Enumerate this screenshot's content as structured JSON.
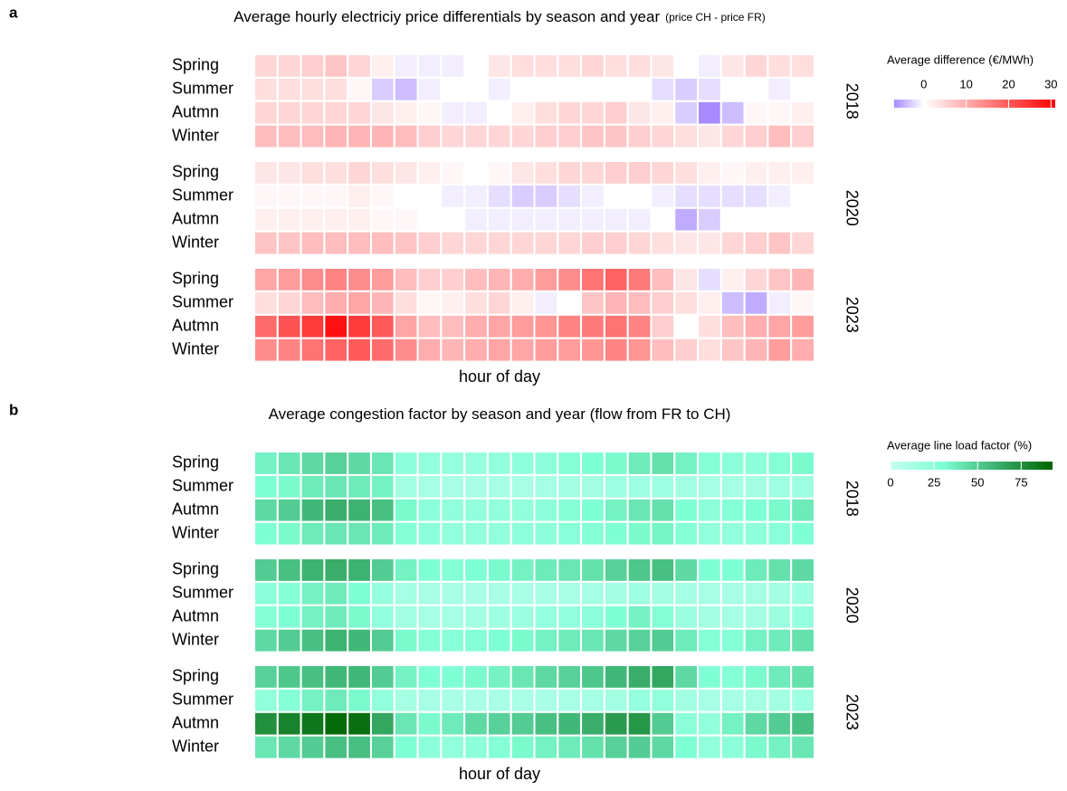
{
  "chart_data": [
    {
      "type": "heatmap",
      "panel": "a",
      "title": "Average hourly electriciy price differentials by season and year",
      "subtitle": "(price CH - price FR)",
      "x_label": "hour of day",
      "legend_title": "Average difference (€/MWh)",
      "clim": [
        -7,
        31
      ],
      "cticks": [
        0,
        10,
        20,
        30
      ],
      "colorscale": [
        {
          "value": -7,
          "color": "#a78bff"
        },
        {
          "value": 0,
          "color": "#ffffff"
        },
        {
          "value": 31,
          "color": "#ff0000"
        }
      ],
      "facets": [
        {
          "label": "2018",
          "rows": [
            {
              "name": "Spring",
              "values": [
                5,
                5,
                6,
                7,
                5,
                2,
                -1,
                -1,
                -1,
                0,
                3,
                4,
                4,
                4,
                5,
                4,
                4,
                3,
                0,
                -1,
                3,
                5,
                4,
                4
              ]
            },
            {
              "name": "Summer",
              "values": [
                4,
                4,
                4,
                4,
                1,
                -3,
                -4,
                -1,
                0,
                0,
                -1,
                0,
                0,
                0,
                0,
                0,
                0,
                -2,
                -3,
                -2,
                0,
                0,
                -1,
                0
              ]
            },
            {
              "name": "Autmn",
              "values": [
                5,
                5,
                5,
                5,
                5,
                3,
                2,
                1,
                -1,
                -1,
                0,
                2,
                4,
                5,
                5,
                6,
                3,
                2,
                -3,
                -8,
                -4,
                1,
                1,
                2
              ]
            },
            {
              "name": "Winter",
              "values": [
                8,
                8,
                8,
                9,
                9,
                9,
                8,
                6,
                5,
                5,
                5,
                5,
                6,
                6,
                7,
                7,
                6,
                5,
                4,
                3,
                5,
                6,
                8,
                6
              ]
            }
          ]
        },
        {
          "label": "2020",
          "rows": [
            {
              "name": "Spring",
              "values": [
                3,
                3,
                4,
                4,
                5,
                4,
                3,
                2,
                1,
                0,
                1,
                3,
                4,
                5,
                5,
                6,
                6,
                5,
                4,
                2,
                1,
                2,
                2,
                2
              ]
            },
            {
              "name": "Summer",
              "values": [
                1,
                1,
                1,
                1,
                2,
                1,
                0,
                0,
                -1,
                -1,
                -2,
                -3,
                -3,
                -2,
                -1,
                0,
                0,
                -1,
                -2,
                -2,
                -2,
                -2,
                -1,
                0
              ]
            },
            {
              "name": "Autmn",
              "values": [
                2,
                2,
                2,
                2,
                2,
                1,
                1,
                0,
                0,
                -1,
                -1,
                -1,
                -1,
                -1,
                -1,
                -1,
                -1,
                0,
                -5,
                -3,
                0,
                0,
                0,
                0
              ]
            },
            {
              "name": "Winter",
              "values": [
                7,
                7,
                8,
                8,
                8,
                8,
                7,
                6,
                5,
                5,
                5,
                5,
                5,
                5,
                6,
                6,
                5,
                4,
                3,
                3,
                5,
                6,
                7,
                5
              ]
            }
          ]
        },
        {
          "label": "2023",
          "rows": [
            {
              "name": "Spring",
              "values": [
                11,
                12,
                14,
                15,
                14,
                12,
                8,
                6,
                6,
                8,
                9,
                10,
                12,
                14,
                17,
                19,
                16,
                8,
                3,
                -2,
                2,
                5,
                7,
                9
              ]
            },
            {
              "name": "Summer",
              "values": [
                4,
                5,
                8,
                10,
                11,
                9,
                4,
                1,
                2,
                4,
                5,
                2,
                -1,
                0,
                7,
                9,
                8,
                6,
                4,
                2,
                -4,
                -5,
                -1,
                1
              ]
            },
            {
              "name": "Autmn",
              "values": [
                18,
                21,
                24,
                29,
                24,
                20,
                11,
                8,
                8,
                10,
                11,
                12,
                13,
                15,
                16,
                17,
                15,
                6,
                0,
                4,
                8,
                10,
                11,
                12
              ]
            },
            {
              "name": "Winter",
              "values": [
                14,
                15,
                17,
                19,
                20,
                18,
                14,
                10,
                9,
                10,
                11,
                11,
                12,
                12,
                13,
                15,
                13,
                8,
                6,
                4,
                7,
                9,
                12,
                10
              ]
            }
          ]
        }
      ]
    },
    {
      "type": "heatmap",
      "panel": "b",
      "title": "Average congestion factor by season and year (flow from FR to CH)",
      "x_label": "hour of day",
      "legend_title": "Average line load factor (%)",
      "clim": [
        0,
        93
      ],
      "cticks": [
        0,
        25,
        50,
        75
      ],
      "colorscale": [
        {
          "value": 0,
          "color": "#c4fff0"
        },
        {
          "value": 30,
          "color": "#7fffd4"
        },
        {
          "value": 60,
          "color": "#3cb371"
        },
        {
          "value": 93,
          "color": "#006400"
        }
      ],
      "facets": [
        {
          "label": "2018",
          "rows": [
            {
              "name": "Spring",
              "values": [
                35,
                40,
                45,
                48,
                45,
                40,
                25,
                22,
                20,
                20,
                22,
                24,
                25,
                28,
                30,
                32,
                38,
                42,
                35,
                28,
                25,
                25,
                28,
                32
              ]
            },
            {
              "name": "Summer",
              "values": [
                30,
                32,
                38,
                40,
                38,
                35,
                15,
                14,
                13,
                13,
                13,
                13,
                14,
                15,
                15,
                16,
                16,
                16,
                15,
                14,
                14,
                15,
                16,
                17
              ]
            },
            {
              "name": "Autmn",
              "values": [
                45,
                50,
                58,
                62,
                60,
                55,
                32,
                25,
                22,
                22,
                22,
                22,
                25,
                28,
                30,
                35,
                40,
                42,
                30,
                25,
                28,
                30,
                32,
                38
              ]
            },
            {
              "name": "Winter",
              "values": [
                30,
                32,
                38,
                40,
                40,
                38,
                28,
                25,
                22,
                22,
                22,
                24,
                25,
                26,
                28,
                30,
                32,
                34,
                28,
                22,
                22,
                24,
                26,
                30
              ]
            }
          ]
        },
        {
          "label": "2020",
          "rows": [
            {
              "name": "Spring",
              "values": [
                50,
                55,
                60,
                62,
                60,
                50,
                35,
                30,
                28,
                30,
                32,
                35,
                38,
                40,
                42,
                48,
                52,
                55,
                45,
                30,
                30,
                38,
                42,
                45
              ]
            },
            {
              "name": "Summer",
              "values": [
                25,
                28,
                35,
                38,
                30,
                20,
                14,
                13,
                12,
                12,
                12,
                12,
                12,
                13,
                14,
                15,
                16,
                15,
                14,
                13,
                13,
                14,
                15,
                16
              ]
            },
            {
              "name": "Autmn",
              "values": [
                28,
                30,
                35,
                38,
                32,
                22,
                15,
                14,
                14,
                15,
                16,
                18,
                20,
                22,
                25,
                30,
                35,
                28,
                18,
                15,
                14,
                15,
                18,
                20
              ]
            },
            {
              "name": "Winter",
              "values": [
                45,
                50,
                55,
                60,
                58,
                50,
                32,
                28,
                26,
                28,
                30,
                32,
                35,
                38,
                40,
                45,
                48,
                50,
                38,
                28,
                28,
                35,
                38,
                42
              ]
            }
          ]
        },
        {
          "label": "2023",
          "rows": [
            {
              "name": "Spring",
              "values": [
                48,
                52,
                55,
                58,
                58,
                50,
                35,
                30,
                30,
                32,
                35,
                40,
                45,
                48,
                52,
                58,
                62,
                65,
                45,
                30,
                28,
                32,
                38,
                42
              ]
            },
            {
              "name": "Summer",
              "values": [
                22,
                28,
                35,
                38,
                32,
                22,
                14,
                13,
                12,
                12,
                12,
                12,
                12,
                13,
                14,
                15,
                20,
                22,
                15,
                13,
                13,
                14,
                15,
                16
              ]
            },
            {
              "name": "Autmn",
              "values": [
                75,
                80,
                85,
                90,
                88,
                65,
                40,
                32,
                38,
                45,
                48,
                50,
                55,
                58,
                62,
                70,
                72,
                50,
                25,
                22,
                35,
                45,
                50,
                55
              ]
            },
            {
              "name": "Winter",
              "values": [
                40,
                45,
                50,
                55,
                55,
                48,
                30,
                25,
                22,
                25,
                28,
                32,
                35,
                38,
                42,
                48,
                50,
                45,
                30,
                22,
                25,
                32,
                35,
                40
              ]
            }
          ]
        }
      ]
    }
  ]
}
